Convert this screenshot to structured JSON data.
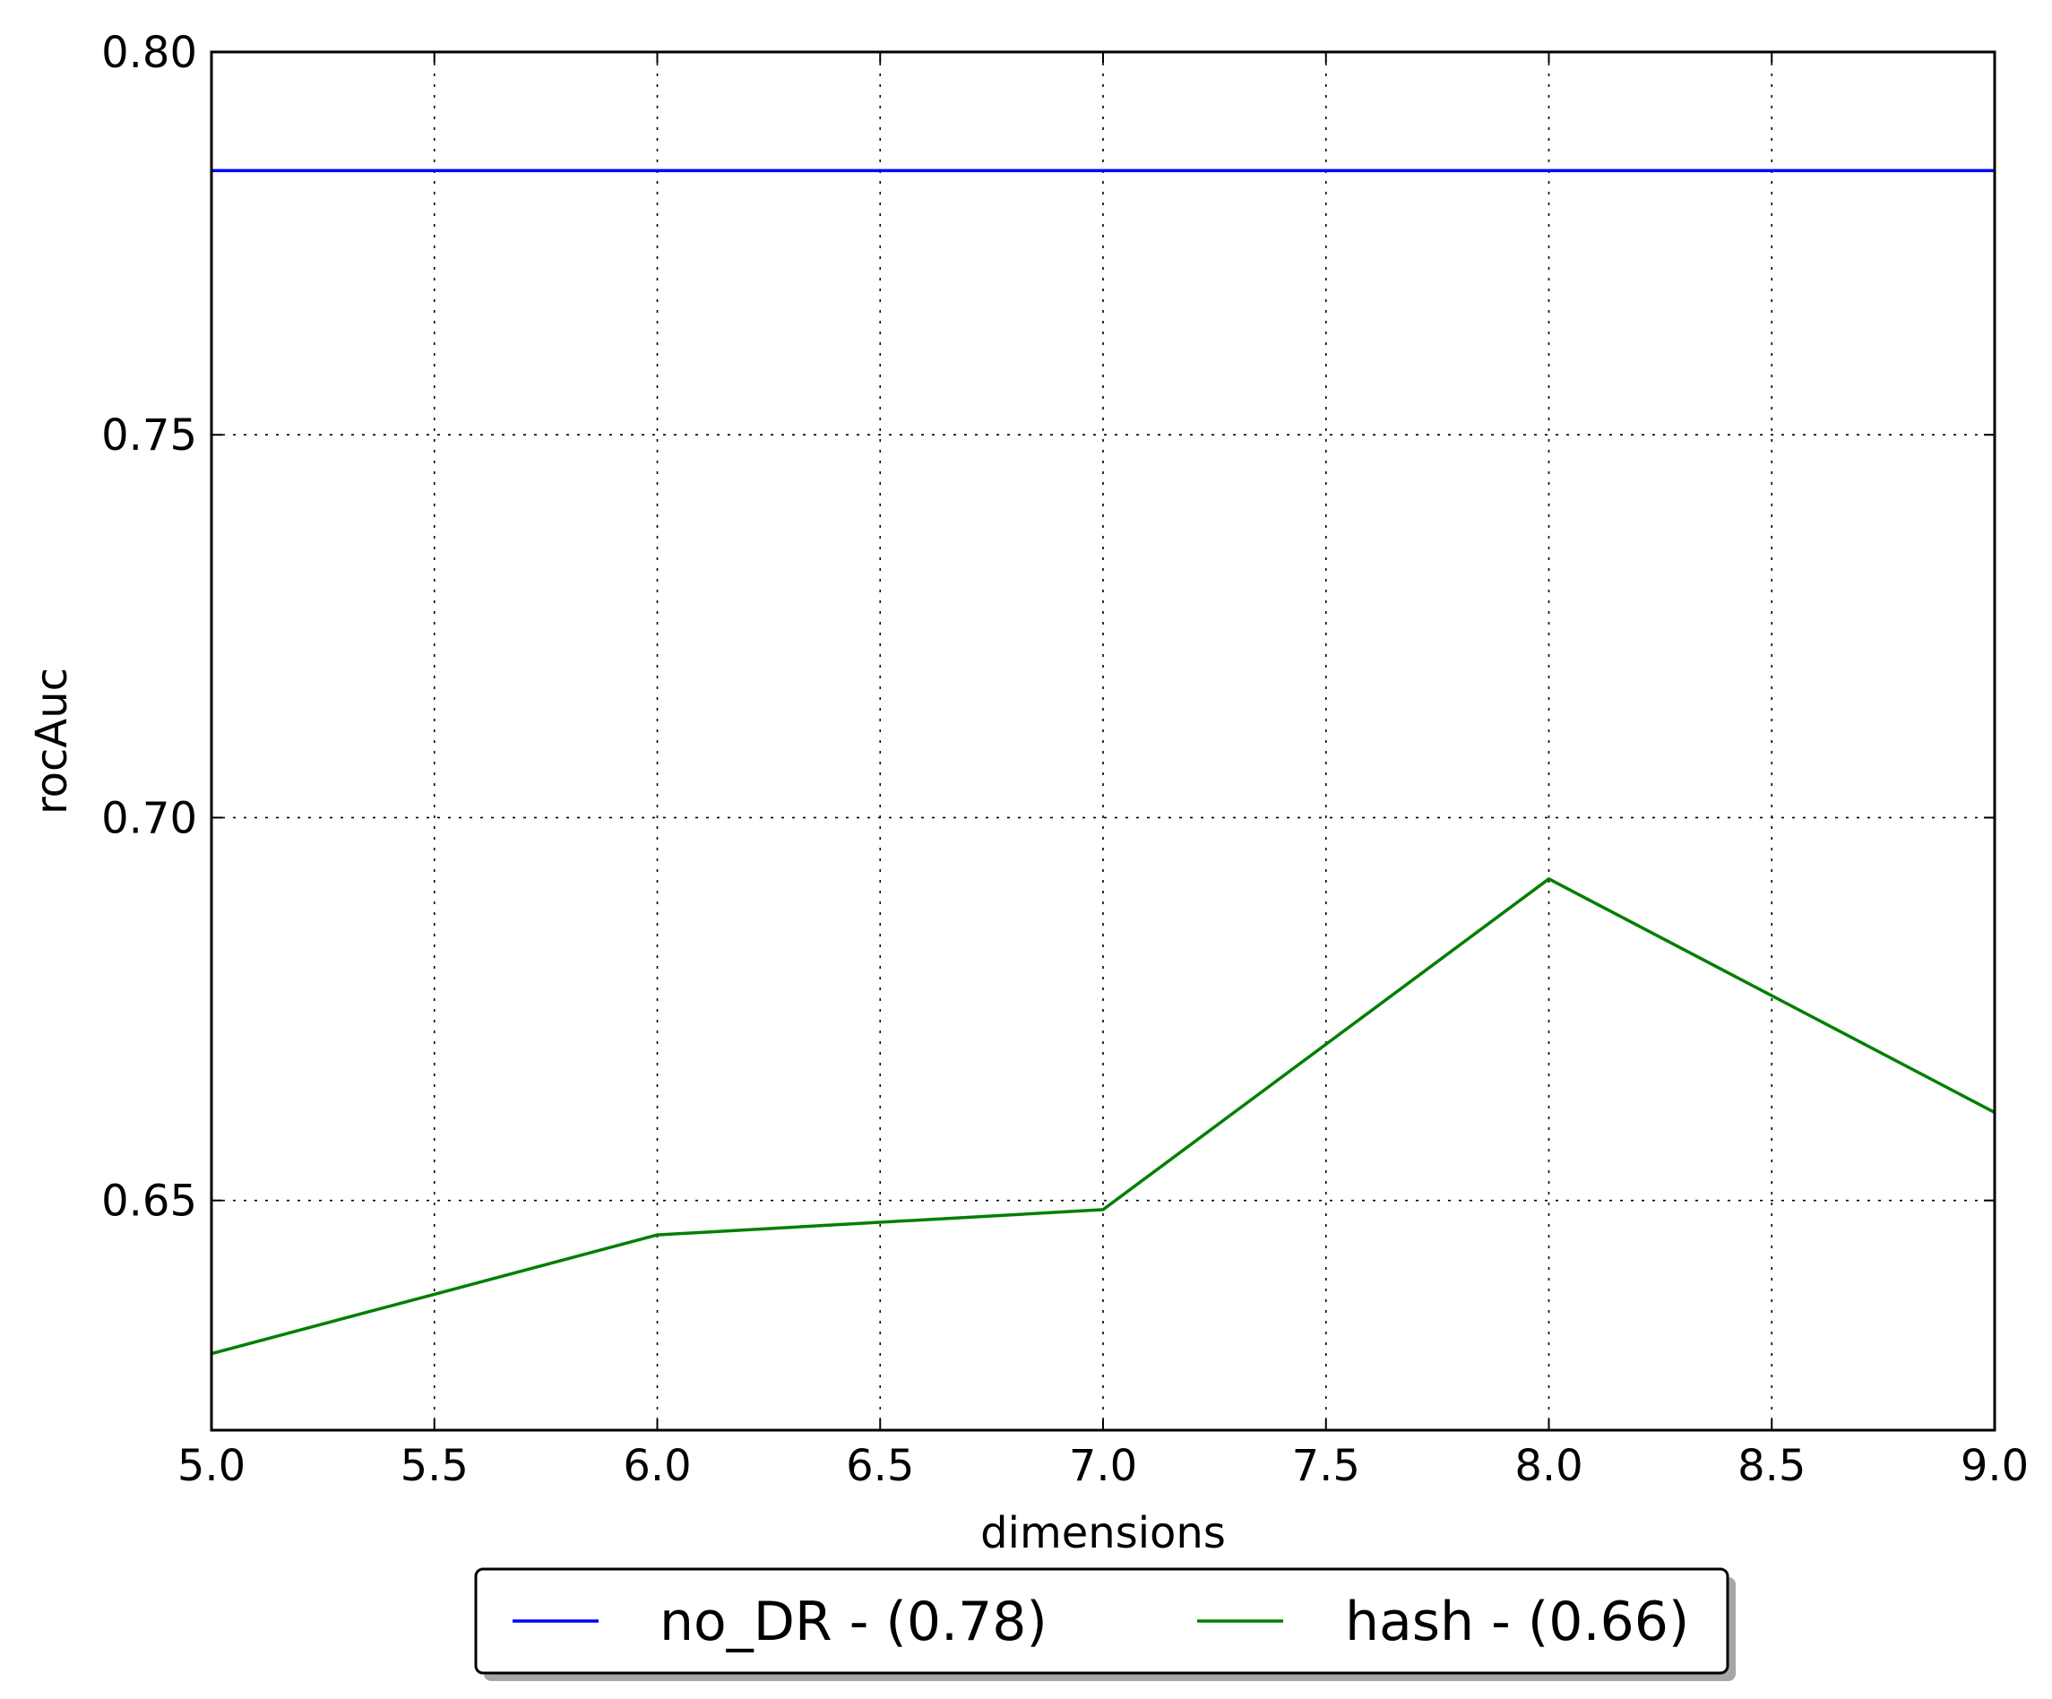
{
  "chart_data": {
    "type": "line",
    "title": "",
    "xlabel": "dimensions",
    "ylabel": "rocAuc",
    "xlim": [
      5.0,
      9.0
    ],
    "ylim": [
      0.62,
      0.8
    ],
    "xticks": [
      5.0,
      5.5,
      6.0,
      6.5,
      7.0,
      7.5,
      8.0,
      8.5,
      9.0
    ],
    "xtick_labels": [
      "5.0",
      "5.5",
      "6.0",
      "6.5",
      "7.0",
      "7.5",
      "8.0",
      "8.5",
      "9.0"
    ],
    "yticks": [
      0.65,
      0.7,
      0.75,
      0.8
    ],
    "ytick_labels": [
      "0.65",
      "0.70",
      "0.75",
      "0.80"
    ],
    "grid": true,
    "legend_position": "bottom-center, below axes",
    "x": [
      5,
      6,
      7,
      8,
      9
    ],
    "series": [
      {
        "name": "no_DR - (0.78)",
        "color": "#0000ff",
        "values": [
          0.7845,
          0.7845,
          0.7845,
          0.7845,
          0.7845
        ]
      },
      {
        "name": "hash - (0.66)",
        "color": "#007f00",
        "values": [
          0.63,
          0.6455,
          0.6488,
          0.692,
          0.6615
        ]
      }
    ]
  }
}
